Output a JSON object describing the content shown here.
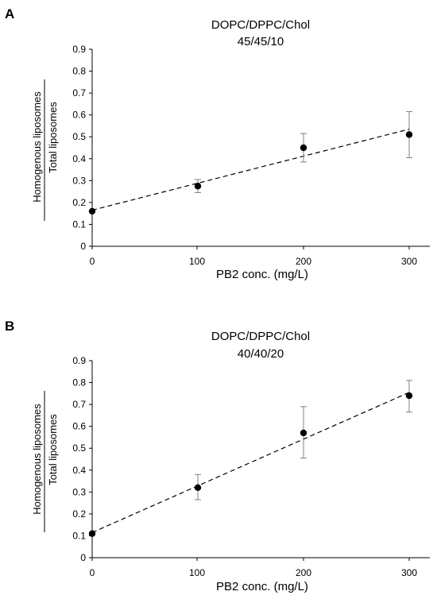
{
  "chart_data": [
    {
      "type": "scatter",
      "panel": "A",
      "title_lines": [
        "DOPC/DPPC/Chol",
        "45/45/10"
      ],
      "xlabel": "PB2 conc. (mg/L)",
      "ylabel_numerator": "Homogenous liposomes",
      "ylabel_denominator": "Total liposomes",
      "xlim": [
        0,
        300
      ],
      "ylim": [
        0,
        0.9
      ],
      "x_ticks": [
        "0",
        "100",
        "200",
        "300"
      ],
      "y_ticks": [
        "0",
        "0.1",
        "0.2",
        "0.3",
        "0.4",
        "0.5",
        "0.6",
        "0.7",
        "0.8",
        "0.9"
      ],
      "grid": false,
      "series": [
        {
          "x": [
            0,
            100,
            200,
            300
          ],
          "y": [
            0.16,
            0.275,
            0.45,
            0.51
          ],
          "error_low": [
            0.16,
            0.245,
            0.385,
            0.405
          ],
          "error_high": [
            0.16,
            0.305,
            0.515,
            0.615
          ]
        }
      ],
      "trendline": {
        "style": "dashed",
        "x": [
          0,
          300
        ],
        "y": [
          0.165,
          0.535
        ]
      }
    },
    {
      "type": "scatter",
      "panel": "B",
      "title_lines": [
        "DOPC/DPPC/Chol",
        "40/40/20"
      ],
      "xlabel": "PB2 conc. (mg/L)",
      "ylabel_numerator": "Homogenous liposomes",
      "ylabel_denominator": "Total liposomes",
      "xlim": [
        0,
        300
      ],
      "ylim": [
        0,
        0.9
      ],
      "x_ticks": [
        "0",
        "100",
        "200",
        "300"
      ],
      "y_ticks": [
        "0",
        "0.1",
        "0.2",
        "0.3",
        "0.4",
        "0.5",
        "0.6",
        "0.7",
        "0.8",
        "0.9"
      ],
      "grid": false,
      "series": [
        {
          "x": [
            0,
            100,
            200,
            300
          ],
          "y": [
            0.11,
            0.32,
            0.57,
            0.74
          ],
          "error_low": [
            0.11,
            0.265,
            0.455,
            0.665
          ],
          "error_high": [
            0.11,
            0.38,
            0.69,
            0.81
          ]
        }
      ],
      "trendline": {
        "style": "dashed",
        "x": [
          0,
          300
        ],
        "y": [
          0.115,
          0.755
        ]
      }
    }
  ]
}
